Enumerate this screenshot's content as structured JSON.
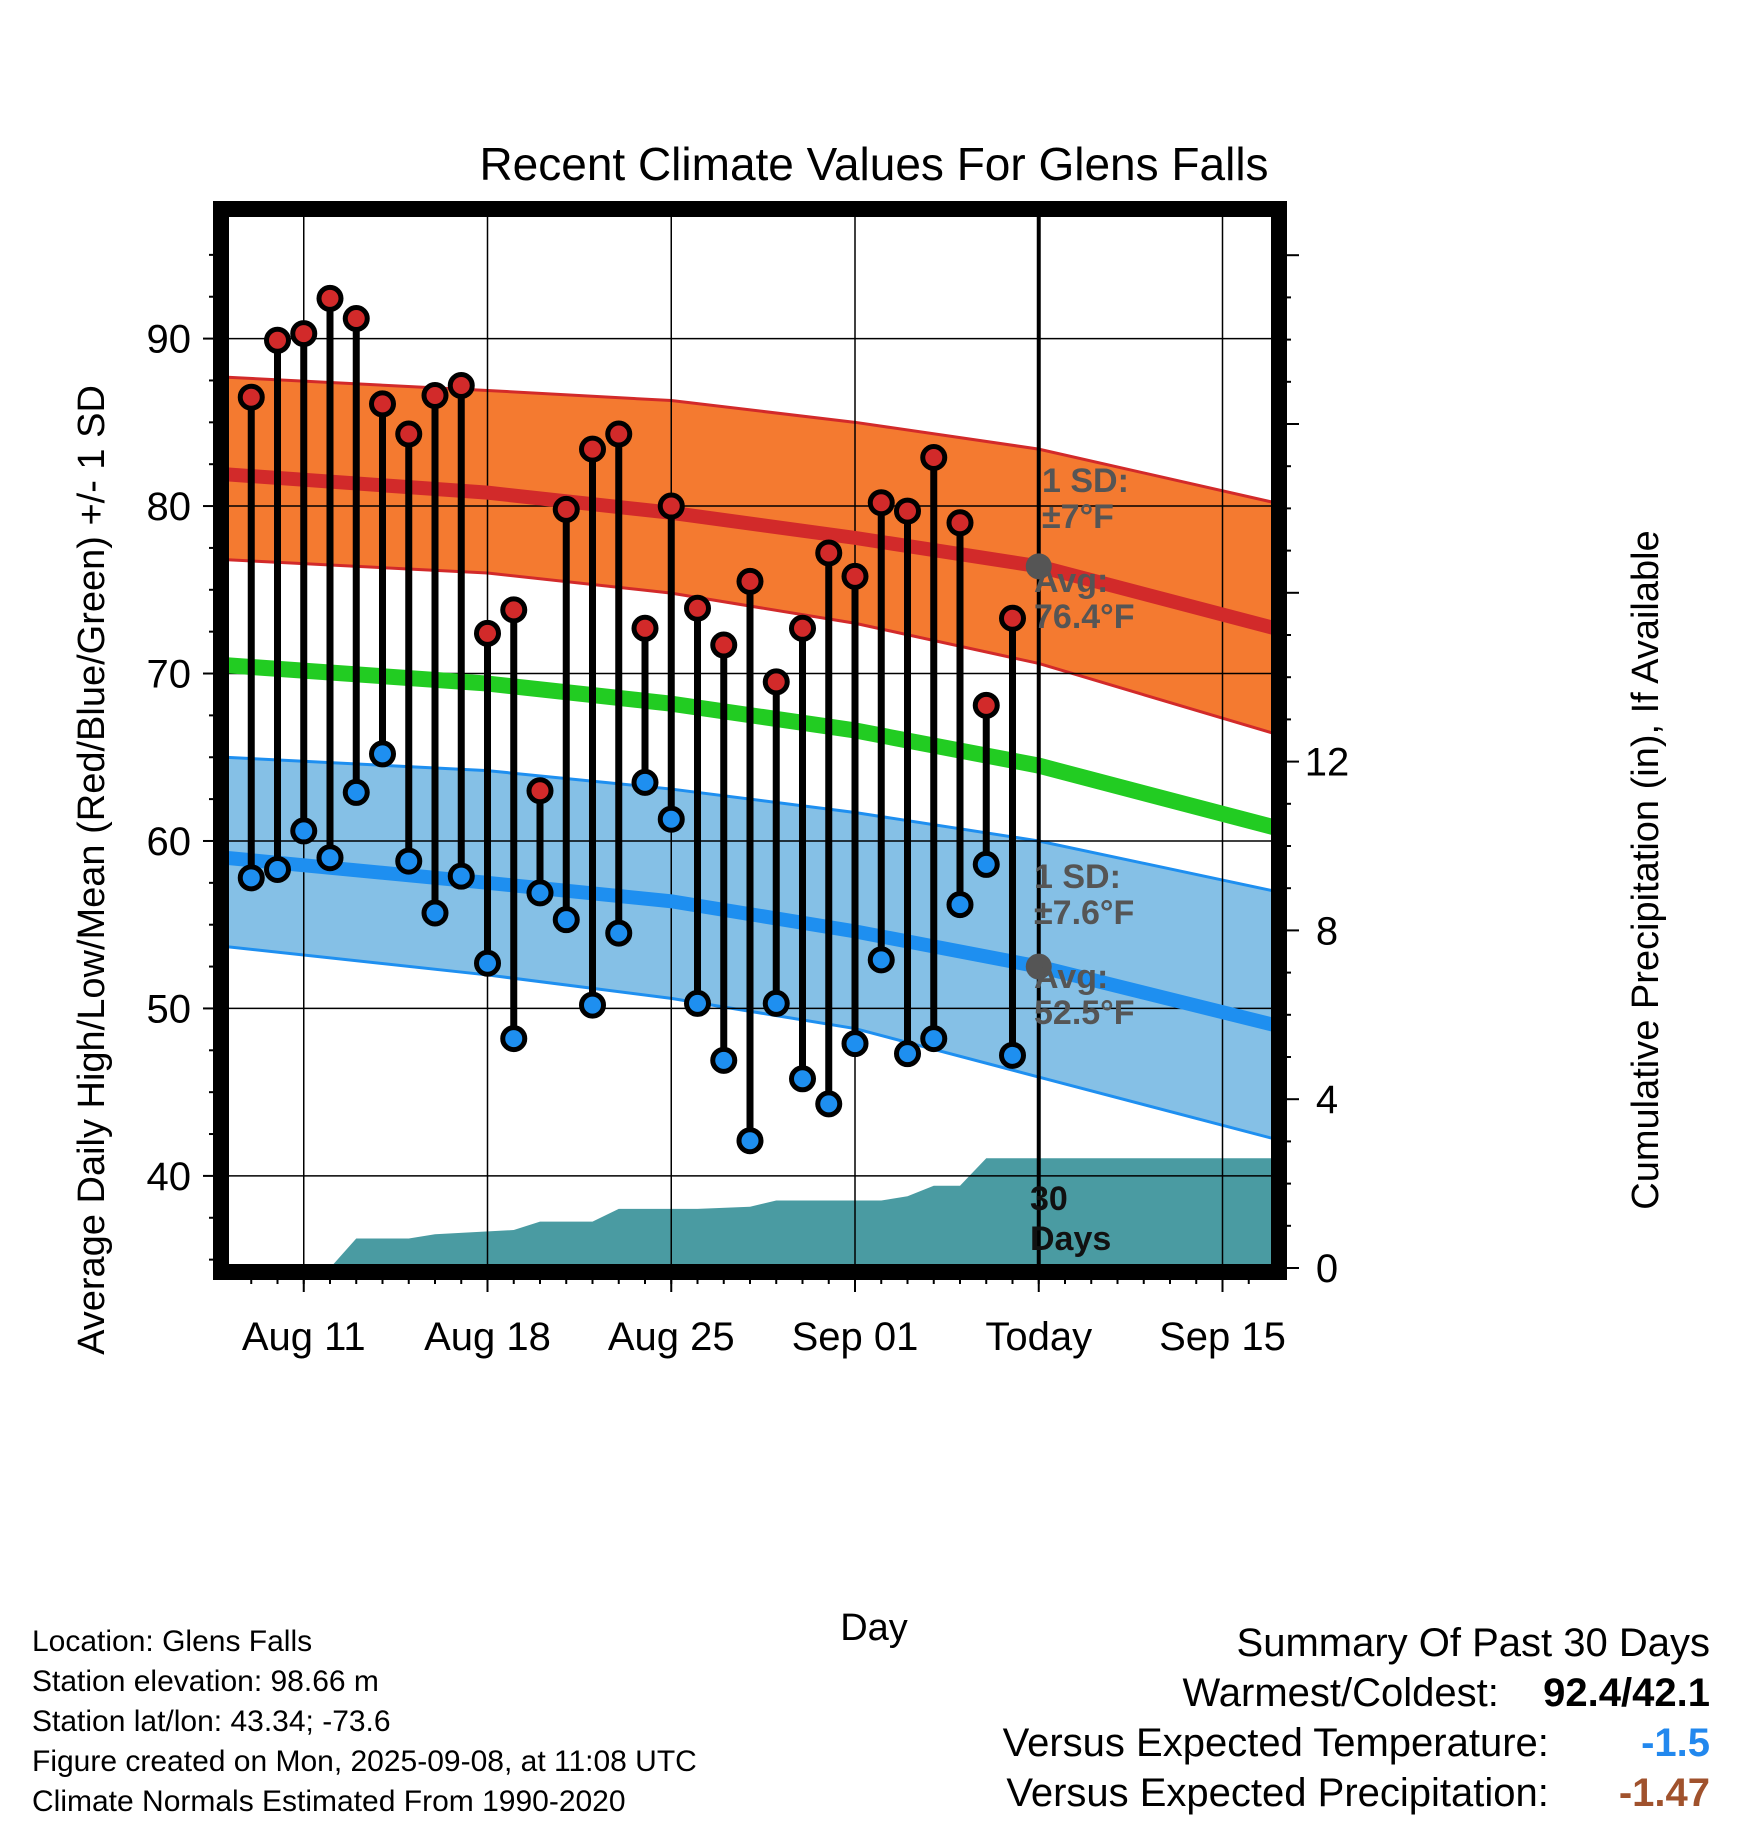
{
  "chart_data": {
    "type": "line",
    "title": "Recent Climate Values For Glens Falls",
    "xlabel": "Day",
    "ylabel": "Average Daily High/Low/Mean (Red/Blue/Green) +/- 1 SD",
    "y2label": "Cumulative Precipitation (in), If Available",
    "x_ticks": [
      {
        "date": "2025-08-11",
        "label": "Aug 11"
      },
      {
        "date": "2025-08-18",
        "label": "Aug 18"
      },
      {
        "date": "2025-08-25",
        "label": "Aug 25"
      },
      {
        "date": "2025-09-01",
        "label": "Sep 01"
      },
      {
        "date": "2025-09-08",
        "label": "Today"
      },
      {
        "date": "2025-09-15",
        "label": "Sep 15"
      }
    ],
    "xlim": [
      "2025-08-08",
      "2025-09-17"
    ],
    "ylim": [
      34.5,
      97.5
    ],
    "y_ticks": [
      40,
      50,
      60,
      70,
      80,
      90
    ],
    "y2lim": [
      0,
      25
    ],
    "y2_ticks": [
      0,
      4,
      8,
      12
    ],
    "today": "2025-09-08",
    "dates": [
      "2025-08-09",
      "2025-08-10",
      "2025-08-11",
      "2025-08-12",
      "2025-08-13",
      "2025-08-14",
      "2025-08-15",
      "2025-08-16",
      "2025-08-17",
      "2025-08-18",
      "2025-08-19",
      "2025-08-20",
      "2025-08-21",
      "2025-08-22",
      "2025-08-23",
      "2025-08-24",
      "2025-08-25",
      "2025-08-26",
      "2025-08-27",
      "2025-08-28",
      "2025-08-29",
      "2025-08-30",
      "2025-08-31",
      "2025-09-01",
      "2025-09-02",
      "2025-09-03",
      "2025-09-04",
      "2025-09-05",
      "2025-09-06",
      "2025-09-07"
    ],
    "series": [
      {
        "name": "Daily High",
        "color": "#cc2222",
        "values": [
          86.5,
          89.9,
          90.3,
          92.4,
          91.2,
          86.1,
          84.3,
          86.6,
          87.2,
          72.4,
          73.8,
          63.0,
          79.8,
          83.4,
          84.3,
          72.7,
          80.0,
          73.9,
          71.7,
          75.5,
          69.5,
          72.7,
          77.2,
          75.8,
          80.2,
          79.7,
          82.9,
          79.0,
          68.1,
          73.3
        ]
      },
      {
        "name": "Daily Low",
        "color": "#2288ee",
        "values": [
          57.8,
          58.3,
          60.6,
          59.0,
          62.9,
          65.2,
          58.8,
          55.7,
          57.9,
          52.7,
          48.2,
          56.9,
          55.3,
          50.2,
          54.5,
          63.5,
          61.3,
          50.3,
          46.9,
          42.1,
          50.3,
          45.8,
          44.3,
          47.9,
          52.9,
          47.3,
          48.2,
          56.2,
          58.6,
          47.2
        ]
      }
    ],
    "normals": {
      "dates": [
        "2025-08-08",
        "2025-08-18",
        "2025-08-25",
        "2025-09-01",
        "2025-09-08",
        "2025-09-17"
      ],
      "high_avg": [
        81.9,
        80.8,
        79.6,
        78.1,
        76.4,
        72.7
      ],
      "high_sd_upper": [
        87.7,
        86.9,
        86.3,
        85.0,
        83.4,
        80.2
      ],
      "high_sd_lower": [
        76.8,
        76.0,
        74.8,
        73.0,
        70.6,
        66.4
      ],
      "mean_avg": [
        70.5,
        69.4,
        68.2,
        66.6,
        64.5,
        60.8
      ],
      "low_avg": [
        59.0,
        57.5,
        56.4,
        54.6,
        52.5,
        49.0
      ],
      "low_sd_upper": [
        65.0,
        64.2,
        63.1,
        61.7,
        60.0,
        57.0
      ],
      "low_sd_lower": [
        53.7,
        52.0,
        50.6,
        48.8,
        45.9,
        42.2
      ]
    },
    "precip": {
      "dates": [
        "2025-08-09",
        "2025-08-12",
        "2025-08-13",
        "2025-08-15",
        "2025-08-16",
        "2025-08-19",
        "2025-08-20",
        "2025-08-22",
        "2025-08-23",
        "2025-08-26",
        "2025-08-28",
        "2025-08-29",
        "2025-09-02",
        "2025-09-03",
        "2025-09-04",
        "2025-09-05",
        "2025-09-06",
        "2025-09-08",
        "2025-09-17"
      ],
      "values": [
        0.0,
        0.0,
        0.7,
        0.7,
        0.8,
        0.9,
        1.1,
        1.1,
        1.4,
        1.4,
        1.45,
        1.6,
        1.6,
        1.7,
        1.95,
        1.95,
        2.6,
        2.6,
        2.6
      ]
    },
    "annotations": {
      "high_sd": "1 SD:",
      "high_sd_value": "±7°F",
      "high_avg_label": "Avg:",
      "high_avg_value": "76.4°F",
      "low_sd": "1 SD:",
      "low_sd_value": "±7.6°F",
      "low_avg_label": "Avg:",
      "low_avg_value": "52.5°F",
      "period_num": "30",
      "period_unit": "Days"
    }
  },
  "colors": {
    "high_band": "#f47a30",
    "high_line": "#d22a2a",
    "mean_line": "#22cc22",
    "low_band": "#85c0e6",
    "low_line": "#1e8ff0",
    "precip": "#4a9ba2",
    "marker_grey": "#555555",
    "warm": "#2288ee",
    "precip_text": "#a0522d"
  },
  "info": {
    "location": "Location: Glens Falls",
    "elevation": "Station elevation: 98.66 m",
    "latlon": "Station lat/lon: 43.34; -73.6",
    "created": "Figure created on Mon, 2025-09-08, at 11:08 UTC",
    "normals": "Climate Normals Estimated From 1990-2020"
  },
  "summary": {
    "heading": "Summary Of Past 30 Days",
    "warm_cold_label": "Warmest/Coldest:",
    "warm_cold_value": "92.4/42.1",
    "temp_label": "Versus Expected Temperature:",
    "temp_value": "-1.5",
    "precip_label": "Versus Expected Precipitation:",
    "precip_value": "-1.47"
  }
}
